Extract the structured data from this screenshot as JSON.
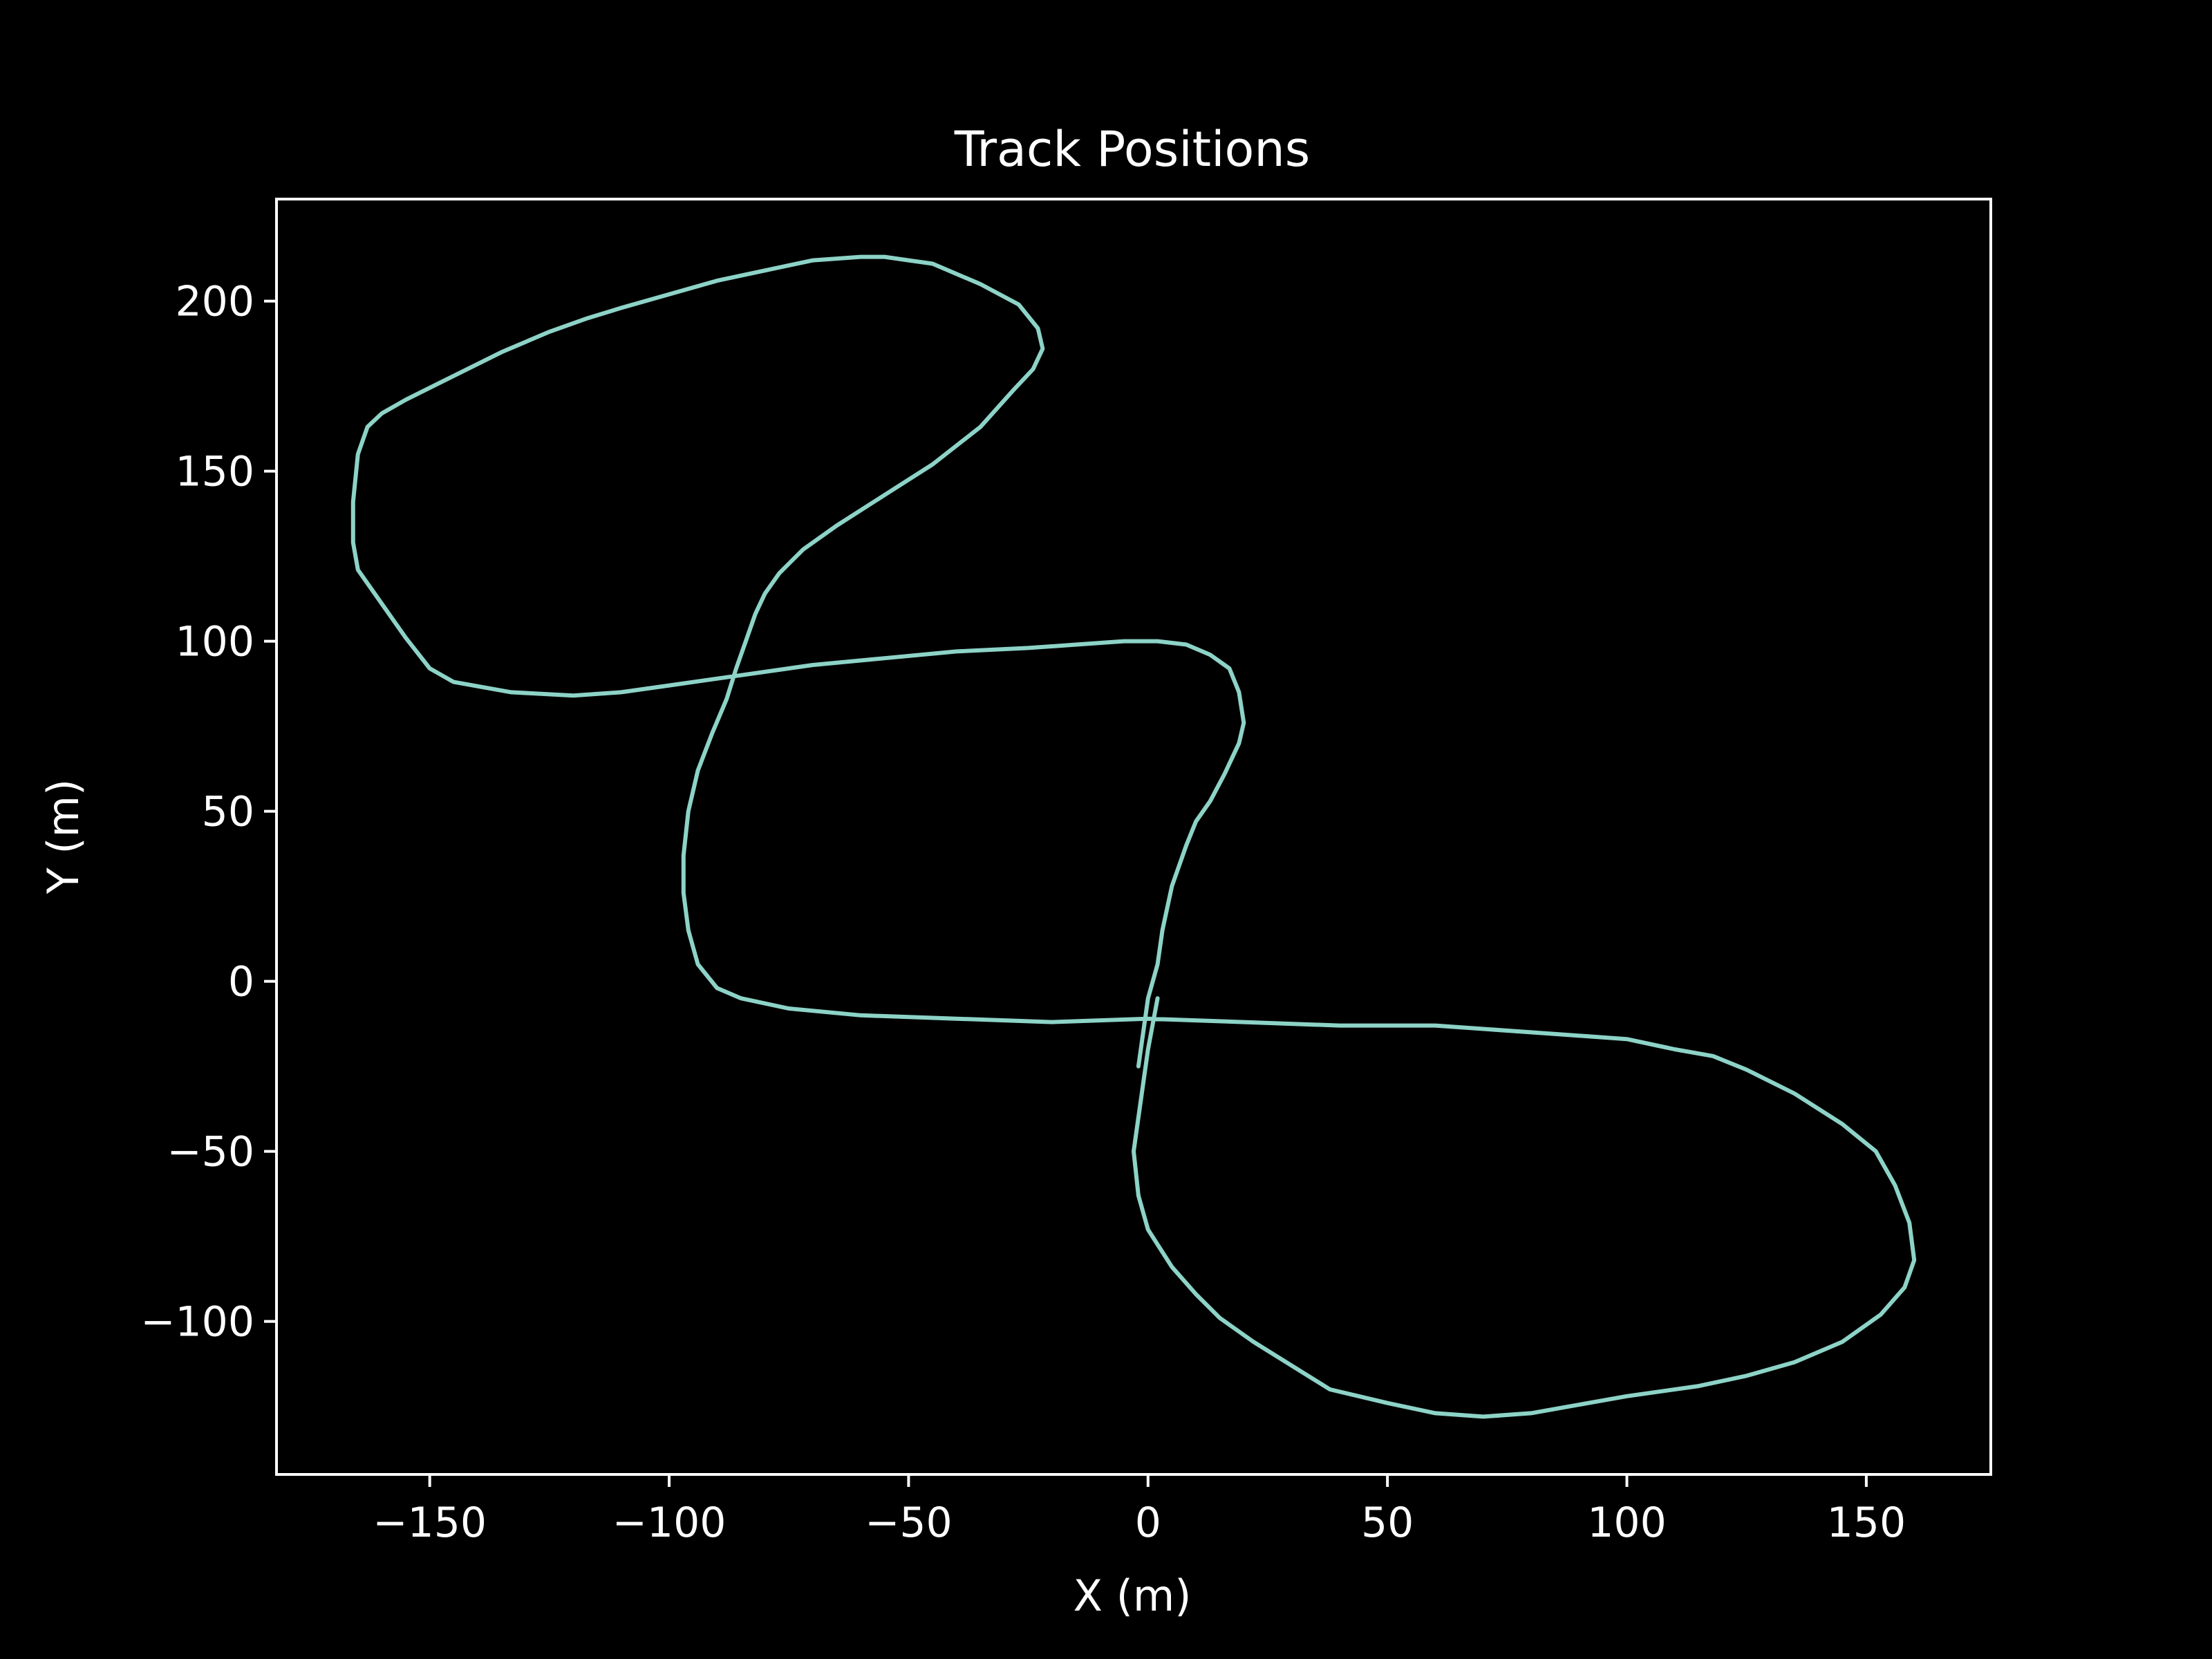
{
  "chart_data": {
    "type": "line",
    "title": "Track Positions",
    "xlabel": "X (m)",
    "ylabel": "Y (m)",
    "xlim": [
      -182,
      176
    ],
    "ylim": [
      -145,
      230
    ],
    "xticks": [
      -150,
      -100,
      -50,
      0,
      50,
      100,
      150
    ],
    "yticks": [
      -100,
      -50,
      0,
      50,
      100,
      150,
      200
    ],
    "xtick_labels": [
      "−150",
      "−100",
      "−50",
      "0",
      "50",
      "100",
      "150"
    ],
    "ytick_labels": [
      "−100",
      "−50",
      "0",
      "50",
      "100",
      "150",
      "200"
    ],
    "grid": false,
    "series": [
      {
        "color": "#8dd3c7",
        "x": [
          -2,
          0,
          2,
          3,
          5,
          8,
          10,
          13,
          16,
          19,
          20,
          19,
          17,
          13,
          8,
          2,
          -5,
          -15,
          -25,
          -40,
          -55,
          -70,
          -85,
          -100,
          -110,
          -120,
          -133,
          -145,
          -150,
          -155,
          -160,
          -165,
          -166,
          -166,
          -165,
          -163,
          -160,
          -155,
          -145,
          -135,
          -125,
          -117,
          -110,
          -100,
          -90,
          -80,
          -70,
          -60,
          -55,
          -50,
          -45,
          -35,
          -27,
          -23,
          -22,
          -24,
          -28,
          -35,
          -45,
          -55,
          -65,
          -72,
          -77,
          -80,
          -82,
          -84,
          -86,
          -88,
          -91,
          -94,
          -96,
          -97,
          -97,
          -96,
          -94,
          -90,
          -85,
          -75,
          -60,
          -40,
          -20,
          0,
          20,
          40,
          60,
          80,
          100,
          110,
          118,
          125,
          135,
          145,
          152,
          156,
          159,
          160,
          158,
          153,
          145,
          135,
          125,
          115,
          100,
          80,
          70,
          60,
          50,
          38,
          30,
          22,
          15,
          10,
          5,
          0,
          -2,
          -3,
          -2,
          0,
          2
        ],
        "y": [
          -25,
          -5,
          5,
          15,
          28,
          40,
          47,
          53,
          61,
          70,
          76,
          85,
          92,
          96,
          99,
          100,
          100,
          99,
          98,
          97,
          95,
          93,
          90,
          87,
          85,
          84,
          85,
          88,
          92,
          101,
          111,
          121,
          129,
          141,
          155,
          163,
          167,
          171,
          178,
          185,
          191,
          195,
          198,
          202,
          206,
          209,
          212,
          213,
          213,
          212,
          211,
          205,
          199,
          192,
          186,
          180,
          174,
          163,
          152,
          143,
          134,
          127,
          120,
          114,
          108,
          100,
          92,
          83,
          73,
          62,
          50,
          37,
          26,
          15,
          5,
          -2,
          -5,
          -8,
          -10,
          -11,
          -12,
          -11,
          -12,
          -13,
          -13,
          -15,
          -17,
          -20,
          -22,
          -26,
          -33,
          -42,
          -50,
          -60,
          -71,
          -82,
          -90,
          -98,
          -106,
          -112,
          -116,
          -119,
          -122,
          -127,
          -128,
          -127,
          -124,
          -120,
          -113,
          -106,
          -99,
          -92,
          -84,
          -73,
          -63,
          -50,
          -40,
          -20,
          -5
        ]
      }
    ]
  }
}
